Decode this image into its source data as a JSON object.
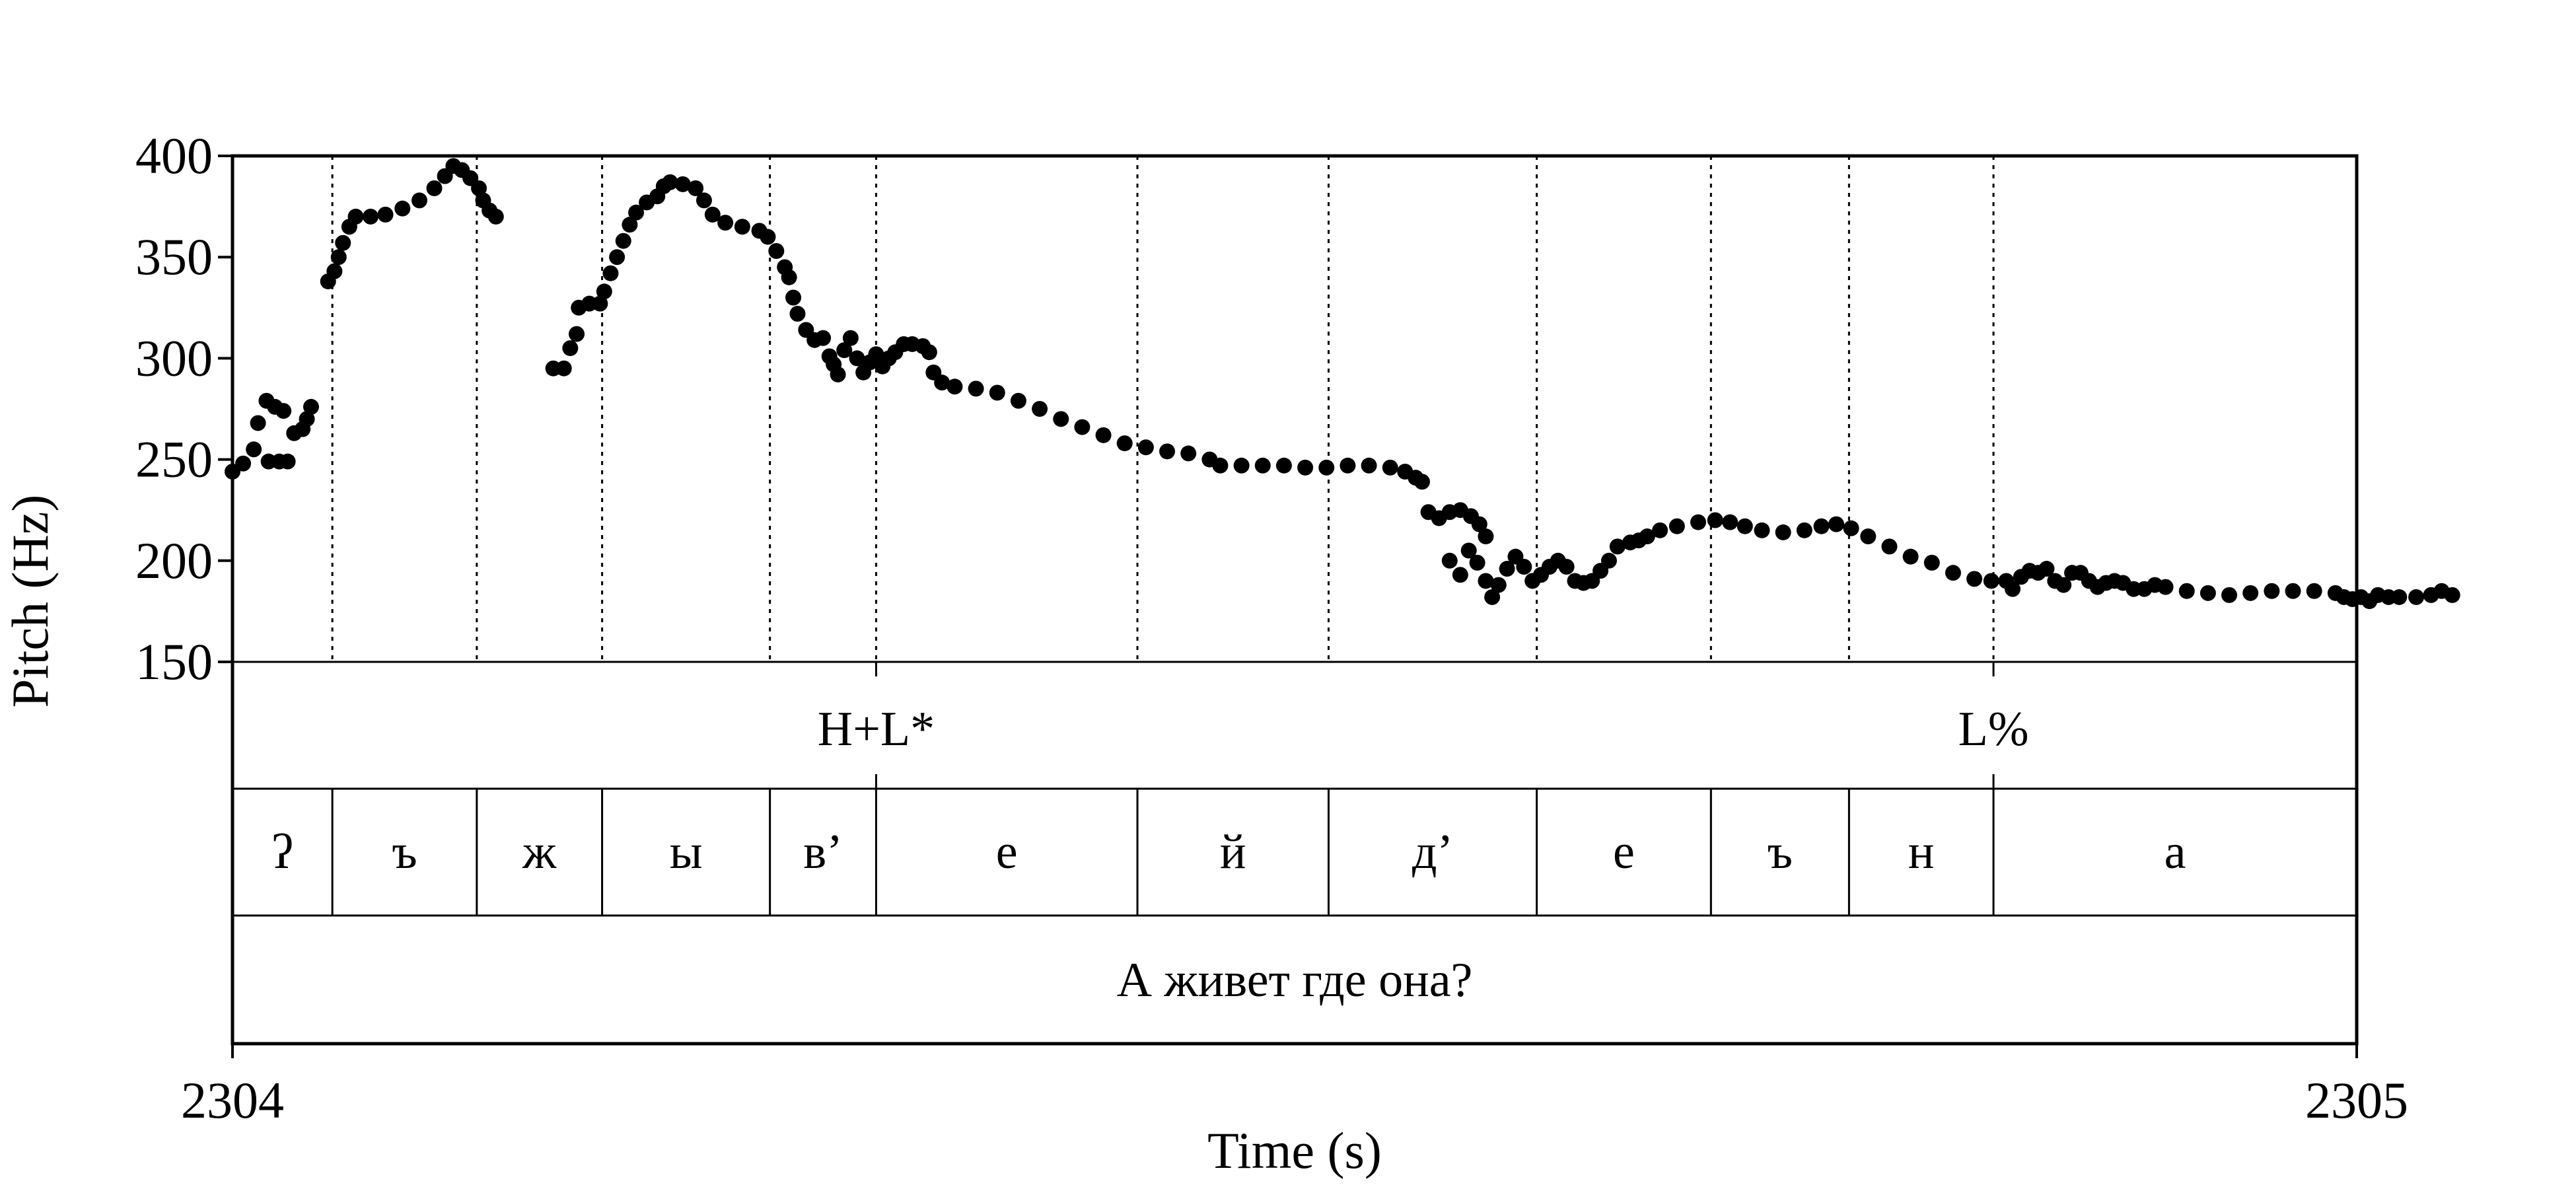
{
  "chart_data": {
    "type": "scatter",
    "xlabel": "Time (s)",
    "ylabel": "Pitch (Hz)",
    "xlim": [
      2304,
      2305
    ],
    "ylim": [
      150,
      400
    ],
    "x_ticks": [
      "2304",
      "2305"
    ],
    "y_ticks": [
      400,
      350,
      300,
      250,
      200,
      150
    ],
    "grid": "dotted vertical lines at segment boundaries",
    "marker_color": "#000000",
    "series": [
      {
        "points": [
          [
            2304.0,
            244
          ],
          [
            2304.005,
            248
          ],
          [
            2304.01,
            255
          ],
          [
            2304.012,
            268
          ],
          [
            2304.016,
            279
          ],
          [
            2304.02,
            276
          ],
          [
            2304.024,
            274
          ],
          [
            2304.017,
            249
          ],
          [
            2304.022,
            249
          ],
          [
            2304.026,
            249
          ],
          [
            2304.029,
            263
          ],
          [
            2304.033,
            265
          ],
          [
            2304.035,
            270
          ],
          [
            2304.037,
            276
          ],
          [
            2304.045,
            338
          ],
          [
            2304.048,
            343
          ],
          [
            2304.05,
            350
          ],
          [
            2304.052,
            357
          ],
          [
            2304.055,
            365
          ],
          [
            2304.058,
            370
          ],
          [
            2304.065,
            370
          ],
          [
            2304.072,
            371
          ],
          [
            2304.08,
            374
          ],
          [
            2304.088,
            378
          ],
          [
            2304.095,
            384
          ],
          [
            2304.1,
            390
          ],
          [
            2304.104,
            395
          ],
          [
            2304.108,
            393
          ],
          [
            2304.112,
            389
          ],
          [
            2304.116,
            384
          ],
          [
            2304.118,
            378
          ],
          [
            2304.121,
            373
          ],
          [
            2304.124,
            370
          ],
          [
            2304.151,
            295
          ],
          [
            2304.156,
            295
          ],
          [
            2304.159,
            305
          ],
          [
            2304.162,
            312
          ],
          [
            2304.163,
            325
          ],
          [
            2304.168,
            327
          ],
          [
            2304.173,
            327
          ],
          [
            2304.175,
            333
          ],
          [
            2304.178,
            342
          ],
          [
            2304.181,
            350
          ],
          [
            2304.184,
            358
          ],
          [
            2304.187,
            366
          ],
          [
            2304.19,
            372
          ],
          [
            2304.195,
            377
          ],
          [
            2304.2,
            380
          ],
          [
            2304.203,
            385
          ],
          [
            2304.206,
            387
          ],
          [
            2304.212,
            386
          ],
          [
            2304.218,
            384
          ],
          [
            2304.222,
            378
          ],
          [
            2304.226,
            371
          ],
          [
            2304.232,
            367
          ],
          [
            2304.24,
            365
          ],
          [
            2304.248,
            363
          ],
          [
            2304.252,
            360
          ],
          [
            2304.256,
            353
          ],
          [
            2304.26,
            345
          ],
          [
            2304.262,
            340
          ],
          [
            2304.264,
            330
          ],
          [
            2304.266,
            322
          ],
          [
            2304.27,
            314
          ],
          [
            2304.274,
            309
          ],
          [
            2304.278,
            310
          ],
          [
            2304.281,
            301
          ],
          [
            2304.283,
            297
          ],
          [
            2304.285,
            292
          ],
          [
            2304.288,
            304
          ],
          [
            2304.291,
            310
          ],
          [
            2304.294,
            300
          ],
          [
            2304.297,
            293
          ],
          [
            2304.3,
            298
          ],
          [
            2304.303,
            302
          ],
          [
            2304.306,
            296
          ],
          [
            2304.309,
            300
          ],
          [
            2304.312,
            303
          ],
          [
            2304.316,
            307
          ],
          [
            2304.32,
            307
          ],
          [
            2304.325,
            306
          ],
          [
            2304.328,
            303
          ],
          [
            2304.33,
            293
          ],
          [
            2304.334,
            288
          ],
          [
            2304.34,
            286
          ],
          [
            2304.35,
            285
          ],
          [
            2304.36,
            283
          ],
          [
            2304.37,
            279
          ],
          [
            2304.38,
            275
          ],
          [
            2304.39,
            270
          ],
          [
            2304.4,
            266
          ],
          [
            2304.41,
            262
          ],
          [
            2304.42,
            258
          ],
          [
            2304.43,
            256
          ],
          [
            2304.44,
            254
          ],
          [
            2304.45,
            253
          ],
          [
            2304.46,
            250
          ],
          [
            2304.465,
            247
          ],
          [
            2304.475,
            247
          ],
          [
            2304.485,
            247
          ],
          [
            2304.495,
            247
          ],
          [
            2304.505,
            246
          ],
          [
            2304.515,
            246
          ],
          [
            2304.525,
            247
          ],
          [
            2304.535,
            247
          ],
          [
            2304.545,
            246
          ],
          [
            2304.552,
            244
          ],
          [
            2304.557,
            241
          ],
          [
            2304.56,
            239
          ],
          [
            2304.563,
            224
          ],
          [
            2304.568,
            221
          ],
          [
            2304.573,
            224
          ],
          [
            2304.578,
            225
          ],
          [
            2304.583,
            222
          ],
          [
            2304.587,
            218
          ],
          [
            2304.59,
            212
          ],
          [
            2304.573,
            200
          ],
          [
            2304.578,
            193
          ],
          [
            2304.582,
            205
          ],
          [
            2304.586,
            199
          ],
          [
            2304.59,
            190
          ],
          [
            2304.593,
            182
          ],
          [
            2304.596,
            188
          ],
          [
            2304.6,
            196
          ],
          [
            2304.604,
            202
          ],
          [
            2304.608,
            197
          ],
          [
            2304.612,
            190
          ],
          [
            2304.616,
            193
          ],
          [
            2304.62,
            197
          ],
          [
            2304.624,
            200
          ],
          [
            2304.628,
            197
          ],
          [
            2304.632,
            190
          ],
          [
            2304.636,
            189
          ],
          [
            2304.64,
            190
          ],
          [
            2304.644,
            195
          ],
          [
            2304.648,
            200
          ],
          [
            2304.652,
            207
          ],
          [
            2304.658,
            209
          ],
          [
            2304.662,
            210
          ],
          [
            2304.666,
            212
          ],
          [
            2304.672,
            215
          ],
          [
            2304.68,
            217
          ],
          [
            2304.69,
            219
          ],
          [
            2304.698,
            220
          ],
          [
            2304.705,
            219
          ],
          [
            2304.712,
            217
          ],
          [
            2304.72,
            215
          ],
          [
            2304.73,
            214
          ],
          [
            2304.74,
            215
          ],
          [
            2304.748,
            217
          ],
          [
            2304.755,
            218
          ],
          [
            2304.762,
            216
          ],
          [
            2304.77,
            212
          ],
          [
            2304.78,
            207
          ],
          [
            2304.79,
            202
          ],
          [
            2304.8,
            199
          ],
          [
            2304.81,
            194
          ],
          [
            2304.82,
            191
          ],
          [
            2304.828,
            190
          ],
          [
            2304.835,
            190
          ],
          [
            2304.838,
            186
          ],
          [
            2304.842,
            192
          ],
          [
            2304.846,
            195
          ],
          [
            2304.85,
            194
          ],
          [
            2304.854,
            196
          ],
          [
            2304.858,
            190
          ],
          [
            2304.862,
            188
          ],
          [
            2304.866,
            194
          ],
          [
            2304.87,
            194
          ],
          [
            2304.874,
            190
          ],
          [
            2304.878,
            187
          ],
          [
            2304.882,
            189
          ],
          [
            2304.886,
            190
          ],
          [
            2304.89,
            189
          ],
          [
            2304.895,
            186
          ],
          [
            2304.9,
            186
          ],
          [
            2304.905,
            188
          ],
          [
            2304.91,
            187
          ],
          [
            2304.92,
            185
          ],
          [
            2304.93,
            184
          ],
          [
            2304.94,
            183
          ],
          [
            2304.95,
            184
          ],
          [
            2304.96,
            185
          ],
          [
            2304.97,
            185
          ],
          [
            2304.98,
            185
          ],
          [
            2304.99,
            184
          ],
          [
            2304.994,
            182
          ],
          [
            2304.998,
            181
          ],
          [
            2305.002,
            182
          ],
          [
            2305.006,
            180
          ],
          [
            2305.01,
            183
          ],
          [
            2305.015,
            182
          ],
          [
            2305.02,
            182
          ],
          [
            2305.028,
            182
          ],
          [
            2305.035,
            183
          ],
          [
            2305.04,
            185
          ],
          [
            2305.045,
            183
          ]
        ]
      }
    ],
    "boundaries": [
      2304.047,
      2304.115,
      2304.174,
      2304.253,
      2304.303,
      2304.426,
      2304.516,
      2304.614,
      2304.696,
      2304.761,
      2304.829
    ],
    "tiers": [
      {
        "name": "tones",
        "intervals": [
          {
            "label": "H+L*",
            "at": 2304.303
          },
          {
            "label": "L%",
            "at": 2304.829
          }
        ]
      },
      {
        "name": "phones",
        "intervals": [
          {
            "start": 2304.0,
            "end": 2304.047,
            "label": "ʔ"
          },
          {
            "start": 2304.047,
            "end": 2304.115,
            "label": "ъ"
          },
          {
            "start": 2304.115,
            "end": 2304.174,
            "label": "ж"
          },
          {
            "start": 2304.174,
            "end": 2304.253,
            "label": "ы"
          },
          {
            "start": 2304.253,
            "end": 2304.303,
            "label": "в’"
          },
          {
            "start": 2304.303,
            "end": 2304.426,
            "label": "е"
          },
          {
            "start": 2304.426,
            "end": 2304.516,
            "label": "й"
          },
          {
            "start": 2304.516,
            "end": 2304.614,
            "label": "д’"
          },
          {
            "start": 2304.614,
            "end": 2304.696,
            "label": "е"
          },
          {
            "start": 2304.696,
            "end": 2304.761,
            "label": "ъ"
          },
          {
            "start": 2304.761,
            "end": 2304.829,
            "label": "н"
          },
          {
            "start": 2304.829,
            "end": 2305.0,
            "label": "а"
          }
        ]
      },
      {
        "name": "words",
        "intervals": [
          {
            "start": 2304.0,
            "end": 2305.0,
            "label": "А живет где она?"
          }
        ]
      }
    ]
  }
}
